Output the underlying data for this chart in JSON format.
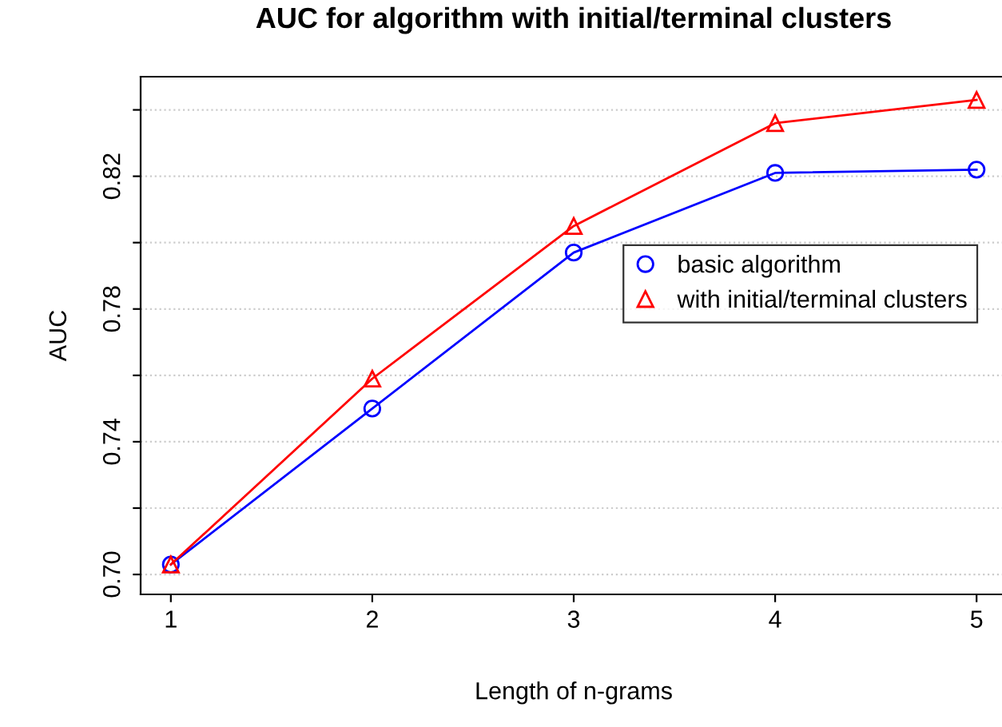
{
  "chart_data": {
    "type": "line",
    "title": "AUC for algorithm with initial/terminal clusters",
    "xlabel": "Length of n-grams",
    "ylabel": "AUC",
    "x": [
      1,
      2,
      3,
      4,
      5
    ],
    "series": [
      {
        "name": "basic algorithm",
        "color": "#0000ff",
        "marker": "circle",
        "values": [
          0.703,
          0.75,
          0.797,
          0.821,
          0.822
        ]
      },
      {
        "name": "with initial/terminal clusters",
        "color": "#ff0000",
        "marker": "triangle",
        "values": [
          0.703,
          0.759,
          0.805,
          0.836,
          0.843
        ]
      }
    ],
    "xlim": [
      0.85,
      5.15
    ],
    "ylim": [
      0.694,
      0.85
    ],
    "xticks": [
      1,
      2,
      3,
      4,
      5
    ],
    "yticks": [
      {
        "value": 0.7,
        "label": "0.70"
      },
      {
        "value": 0.72,
        "label": null
      },
      {
        "value": 0.74,
        "label": "0.74"
      },
      {
        "value": 0.76,
        "label": null
      },
      {
        "value": 0.78,
        "label": "0.78"
      },
      {
        "value": 0.8,
        "label": null
      },
      {
        "value": 0.82,
        "label": "0.82"
      },
      {
        "value": 0.84,
        "label": null
      }
    ],
    "grid": "y",
    "legend": "center right",
    "line_style": "solid"
  }
}
